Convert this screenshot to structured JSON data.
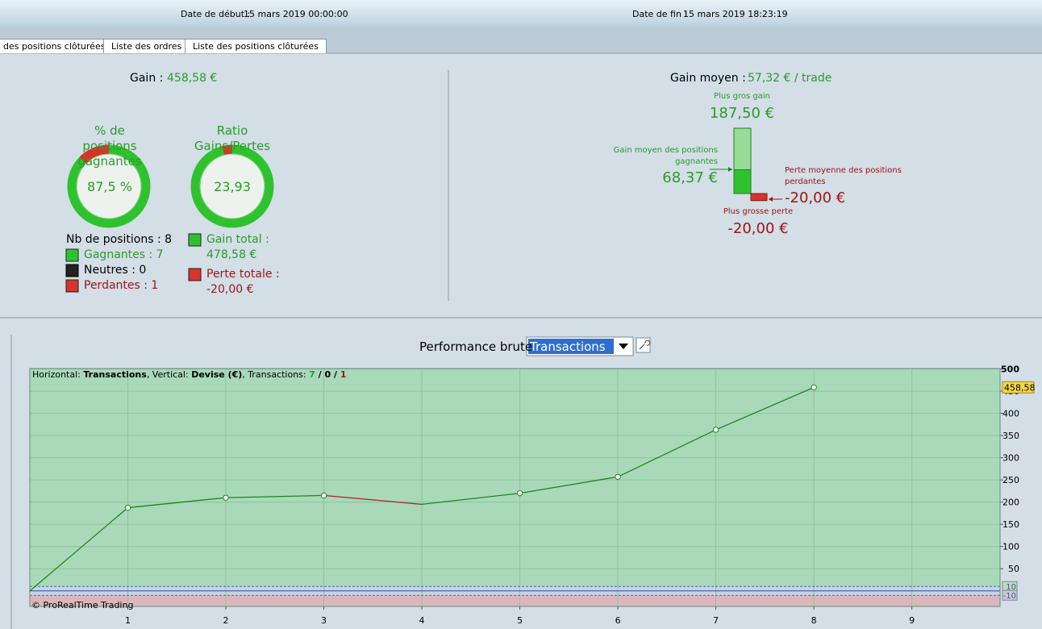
{
  "header": {
    "start_label": "Date de début :",
    "start": "15 mars 2019 00:00:00",
    "end_label": "Date de fin :",
    "end": "15 mars 2019 18:23:19"
  },
  "tabs": [
    "des positions clôturées",
    "Liste des ordres",
    "Liste des positions clôturées"
  ],
  "summary": {
    "gain_label": "Gain :",
    "gain": "458,58 €",
    "win_rate": {
      "title": [
        "% de",
        "positions",
        "gagnantes"
      ],
      "value": 87.5,
      "value_label": "87,5 %"
    },
    "ratio": {
      "title": [
        "Ratio",
        "Gains/Pertes"
      ],
      "value": 23.93,
      "value_label": "23,93"
    },
    "positions": {
      "total": "Nb de positions : 8",
      "winning": "Gagnantes : 7",
      "neutral": "Neutres : 0",
      "losing": "Perdantes : 1"
    },
    "total_gain": {
      "label": "Gain total :",
      "value_label": "478,58 €"
    },
    "total_loss": {
      "label": "Perte totale :",
      "value_label": "-20,00 €"
    }
  },
  "average": {
    "label": "Gain moyen :",
    "value_label": "57,32 € / trade",
    "largest_gain": {
      "label": "Plus gros gain",
      "value": 187.5,
      "value_label": "187,50 €"
    },
    "avg_win": {
      "label": "Gain moyen des positions gagnantes",
      "value": 68.37,
      "value_label": "68,37 €"
    },
    "avg_loss": {
      "label": "Perte moyenne des positions perdantes",
      "value": -20,
      "value_label": "-20,00 €"
    },
    "largest_loss": {
      "label": "Plus grosse perte",
      "value": -20,
      "value_label": "-20,00 €"
    }
  },
  "performance": {
    "title": "Performance brute",
    "dropdown": "Transactions",
    "legend_parts": [
      "Horizontal: ",
      "Transactions",
      ", Vertical: ",
      "Devise (€)",
      ", Transactions: ",
      "7",
      " / ",
      "0",
      " / ",
      "1"
    ],
    "copyright": "© ProRealTime Trading",
    "chart": {
      "type": "line",
      "x": [
        0,
        1,
        2,
        3,
        4,
        5,
        6,
        7,
        8
      ],
      "values": [
        0,
        187.5,
        210,
        215,
        195,
        220,
        257,
        363,
        458.58
      ],
      "segment_colors": [
        "#1a8a1a",
        "#1a8a1a",
        "#1a8a1a",
        "#b02020",
        "#1a8a1a",
        "#1a8a1a",
        "#1a8a1a",
        "#1a8a1a"
      ],
      "marker_shown": [
        false,
        true,
        true,
        true,
        false,
        true,
        true,
        true,
        true
      ],
      "xlim": [
        0,
        9.9
      ],
      "xticks": [
        1,
        2,
        3,
        4,
        5,
        6,
        7,
        8,
        9
      ],
      "ylim": [
        -35,
        501
      ],
      "yticks": [
        50,
        100,
        150,
        200,
        250,
        300,
        350,
        400,
        450,
        500
      ],
      "reference_lines": [
        {
          "value": 10,
          "label": "10"
        },
        {
          "value": -10,
          "label": "-10"
        }
      ],
      "last_value_label": "458,58",
      "grid": true
    }
  }
}
